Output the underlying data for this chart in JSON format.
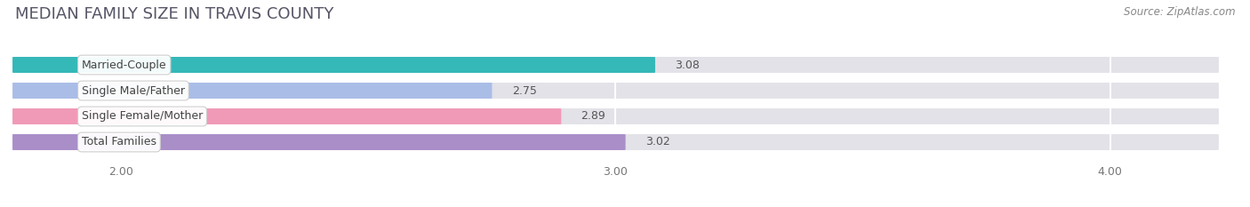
{
  "title": "MEDIAN FAMILY SIZE IN TRAVIS COUNTY",
  "source": "Source: ZipAtlas.com",
  "categories": [
    "Married-Couple",
    "Single Male/Father",
    "Single Female/Mother",
    "Total Families"
  ],
  "values": [
    3.08,
    2.75,
    2.89,
    3.02
  ],
  "bar_colors": [
    "#35b8b8",
    "#aabde6",
    "#f09ab8",
    "#a98ec8"
  ],
  "bg_bar_color": "#e2e2e8",
  "label_bg_color": "#ffffff",
  "background_color": "#ffffff",
  "plot_bg_color": "#ffffff",
  "xlim": [
    1.78,
    4.22
  ],
  "xmin": 1.78,
  "xmax": 4.22,
  "xticks": [
    2.0,
    3.0,
    4.0
  ],
  "xtick_labels": [
    "2.00",
    "3.00",
    "4.00"
  ],
  "bar_height": 0.62,
  "title_fontsize": 13,
  "label_fontsize": 9,
  "value_fontsize": 9,
  "tick_fontsize": 9,
  "source_fontsize": 8.5
}
